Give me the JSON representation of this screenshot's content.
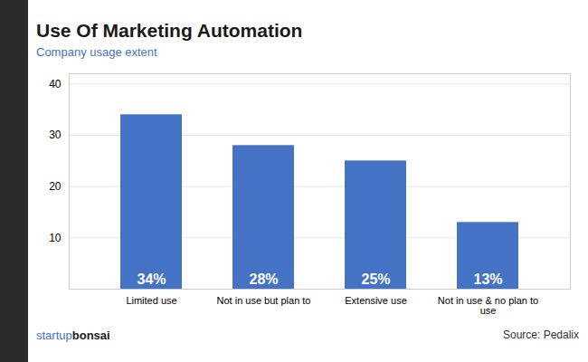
{
  "chart_data": {
    "type": "bar",
    "title": "Use Of Marketing Automation",
    "subtitle": "Company usage extent",
    "categories": [
      "Limited use",
      "Not in use but plan to",
      "Extensive use",
      "Not in use & no plan to use"
    ],
    "values": [
      34,
      28,
      25,
      13
    ],
    "value_labels": [
      "34%",
      "28%",
      "25%",
      "13%"
    ],
    "data_labels": true,
    "color": "#4472C4",
    "ylim": [
      0,
      42
    ],
    "yticks": [
      10,
      20,
      30,
      40
    ],
    "grid": true,
    "annotations": [
      "startup",
      "bonsai",
      "Source: Pedalix"
    ]
  }
}
